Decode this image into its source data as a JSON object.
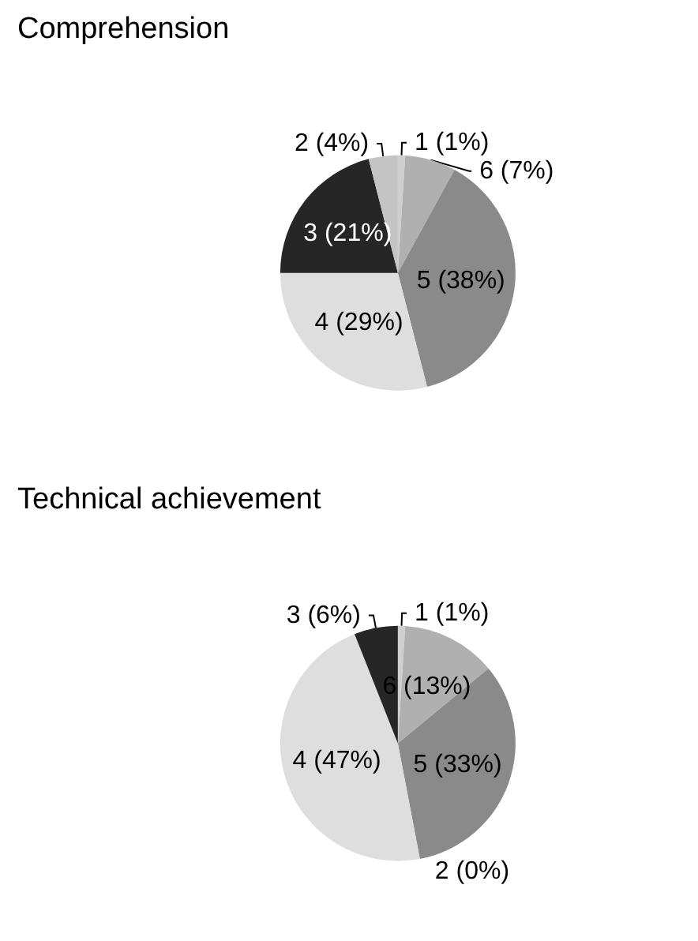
{
  "chart_data": [
    {
      "type": "pie",
      "title": "Comprehension",
      "categories": [
        "1 (1%)",
        "6 (7%)",
        "5 (38%)",
        "4 (29%)",
        "3 (21%)",
        "2 (4%)"
      ],
      "values": [
        1,
        7,
        38,
        29,
        21,
        4
      ],
      "colors": [
        "#cfcfcf",
        "#b0b0b0",
        "#8a8a8a",
        "#dedede",
        "#262626",
        "#c4c4c4"
      ],
      "legend": false
    },
    {
      "type": "pie",
      "title": "Technical achievement",
      "categories": [
        "1 (1%)",
        "6 (13%)",
        "5 (33%)",
        "2 (0%)",
        "4 (47%)",
        "3 (6%)"
      ],
      "values": [
        1,
        13,
        33,
        0,
        47,
        6
      ],
      "colors": [
        "#cfcfcf",
        "#b0b0b0",
        "#8a8a8a",
        "#c4c4c4",
        "#dedede",
        "#262626"
      ],
      "legend": false
    }
  ]
}
